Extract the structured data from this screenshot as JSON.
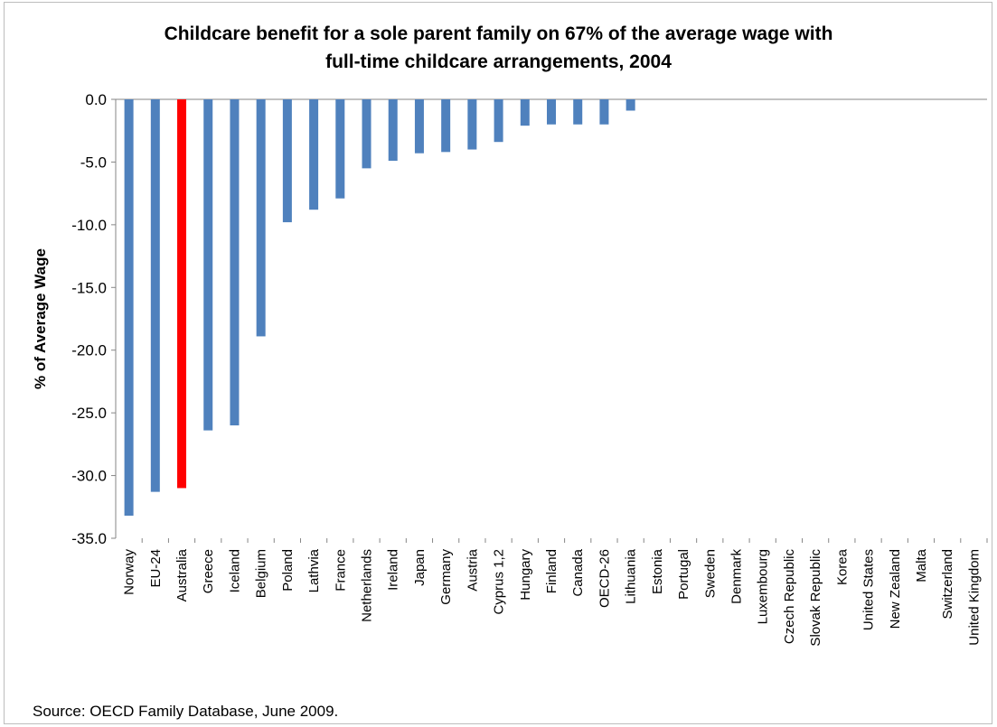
{
  "chart_data": {
    "type": "bar",
    "title_line1": "Childcare benefit for a sole parent family  on 67% of the average wage with",
    "title_line2": "full-time childcare arrangements, 2004",
    "ylabel": "% of Average Wage",
    "xlabel": "",
    "ylim": [
      -35,
      0
    ],
    "yticks": [
      0,
      -5,
      -10,
      -15,
      -20,
      -25,
      -30,
      -35
    ],
    "ytick_labels": [
      "0.0",
      "-5.0",
      "-10.0",
      "-15.0",
      "-20.0",
      "-25.0",
      "-30.0",
      "-35.0"
    ],
    "categories": [
      "Norway",
      "EU-24",
      "Australia",
      "Greece",
      "Iceland",
      "Belgium",
      "Poland",
      "Lathvia",
      "France",
      "Netherlands",
      "Ireland",
      "Japan",
      "Germany",
      "Austria",
      "Cyprus 1,2",
      "Hungary",
      "Finland",
      "Canada",
      "OECD-26",
      "Lithuania",
      "Estonia",
      "Portugal",
      "Sweden",
      "Denmark",
      "Luxembourg",
      "Czech Republic",
      "Slovak Republic",
      "Korea",
      "United States",
      "New Zealand",
      "Malta",
      "Switzerland",
      "United Kingdom"
    ],
    "values": [
      -33.2,
      -31.3,
      -31.0,
      -26.4,
      -26.0,
      -18.9,
      -9.8,
      -8.8,
      -7.9,
      -5.5,
      -4.9,
      -4.3,
      -4.2,
      -4.0,
      -3.4,
      -2.1,
      -2.0,
      -2.0,
      -2.0,
      -0.9,
      0,
      0,
      0,
      0,
      0,
      0,
      0,
      0,
      0,
      0,
      0,
      0,
      0
    ],
    "highlight_category": "Australia",
    "colors": {
      "bar": "#4f81bd",
      "highlight": "#ff0000",
      "axis": "#868686"
    },
    "grid": false,
    "legend": "none"
  },
  "source": "Source: OECD Family Database, June 2009."
}
